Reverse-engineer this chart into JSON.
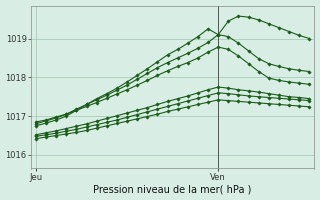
{
  "background_color": "#d8ede4",
  "grid_color": "#9ec8b0",
  "line_color": "#1a5c1a",
  "xlabel": "Pression niveau de la mer( hPa )",
  "xtick_labels": [
    "Jeu",
    "Ven"
  ],
  "xtick_positions": [
    0.0,
    0.72
  ],
  "ylim": [
    1015.65,
    1019.85
  ],
  "yticks": [
    1016,
    1017,
    1018,
    1019
  ],
  "xlim": [
    -0.02,
    1.1
  ],
  "vline_x": 0.72,
  "series": [
    {
      "x": [
        0.0,
        0.04,
        0.08,
        0.12,
        0.16,
        0.2,
        0.24,
        0.28,
        0.32,
        0.36,
        0.4,
        0.44,
        0.48,
        0.52,
        0.56,
        0.6,
        0.64,
        0.68,
        0.72,
        0.76,
        0.8,
        0.84,
        0.88,
        0.92,
        0.96,
        1.0,
        1.04,
        1.08
      ],
      "y": [
        1016.75,
        1016.82,
        1016.9,
        1017.0,
        1017.15,
        1017.3,
        1017.45,
        1017.58,
        1017.72,
        1017.88,
        1018.05,
        1018.22,
        1018.4,
        1018.58,
        1018.72,
        1018.88,
        1019.05,
        1019.25,
        1019.1,
        1019.45,
        1019.58,
        1019.55,
        1019.48,
        1019.38,
        1019.28,
        1019.18,
        1019.08,
        1019.0
      ]
    },
    {
      "x": [
        0.0,
        0.04,
        0.08,
        0.12,
        0.16,
        0.2,
        0.24,
        0.28,
        0.32,
        0.36,
        0.4,
        0.44,
        0.48,
        0.52,
        0.56,
        0.6,
        0.64,
        0.68,
        0.72,
        0.76,
        0.8,
        0.84,
        0.88,
        0.92,
        0.96,
        1.0,
        1.04,
        1.08
      ],
      "y": [
        1016.8,
        1016.88,
        1016.95,
        1017.05,
        1017.18,
        1017.3,
        1017.42,
        1017.54,
        1017.67,
        1017.8,
        1017.95,
        1018.1,
        1018.25,
        1018.38,
        1018.5,
        1018.62,
        1018.75,
        1018.9,
        1019.1,
        1019.05,
        1018.88,
        1018.68,
        1018.48,
        1018.35,
        1018.28,
        1018.22,
        1018.18,
        1018.15
      ]
    },
    {
      "x": [
        0.0,
        0.04,
        0.08,
        0.12,
        0.16,
        0.2,
        0.24,
        0.28,
        0.32,
        0.36,
        0.4,
        0.44,
        0.48,
        0.52,
        0.56,
        0.6,
        0.64,
        0.68,
        0.72,
        0.76,
        0.8,
        0.84,
        0.88,
        0.92,
        0.96,
        1.0,
        1.04,
        1.08
      ],
      "y": [
        1016.85,
        1016.9,
        1016.98,
        1017.05,
        1017.15,
        1017.25,
        1017.35,
        1017.46,
        1017.57,
        1017.68,
        1017.8,
        1017.92,
        1018.05,
        1018.17,
        1018.28,
        1018.38,
        1018.5,
        1018.65,
        1018.78,
        1018.72,
        1018.55,
        1018.35,
        1018.15,
        1017.98,
        1017.92,
        1017.88,
        1017.85,
        1017.82
      ]
    },
    {
      "x": [
        0.0,
        0.04,
        0.08,
        0.12,
        0.16,
        0.2,
        0.24,
        0.28,
        0.32,
        0.36,
        0.4,
        0.44,
        0.48,
        0.52,
        0.56,
        0.6,
        0.64,
        0.68,
        0.72,
        0.76,
        0.8,
        0.84,
        0.88,
        0.92,
        0.96,
        1.0,
        1.04,
        1.08
      ],
      "y": [
        1016.52,
        1016.57,
        1016.62,
        1016.68,
        1016.74,
        1016.8,
        1016.87,
        1016.94,
        1017.01,
        1017.08,
        1017.15,
        1017.22,
        1017.3,
        1017.38,
        1017.45,
        1017.52,
        1017.6,
        1017.68,
        1017.75,
        1017.72,
        1017.68,
        1017.65,
        1017.62,
        1017.58,
        1017.54,
        1017.5,
        1017.48,
        1017.45
      ]
    },
    {
      "x": [
        0.0,
        0.04,
        0.08,
        0.12,
        0.16,
        0.2,
        0.24,
        0.28,
        0.32,
        0.36,
        0.4,
        0.44,
        0.48,
        0.52,
        0.56,
        0.6,
        0.64,
        0.68,
        0.72,
        0.76,
        0.8,
        0.84,
        0.88,
        0.92,
        0.96,
        1.0,
        1.04,
        1.08
      ],
      "y": [
        1016.48,
        1016.52,
        1016.56,
        1016.61,
        1016.66,
        1016.72,
        1016.78,
        1016.84,
        1016.9,
        1016.97,
        1017.04,
        1017.11,
        1017.18,
        1017.25,
        1017.32,
        1017.39,
        1017.46,
        1017.53,
        1017.6,
        1017.58,
        1017.55,
        1017.52,
        1017.5,
        1017.48,
        1017.46,
        1017.44,
        1017.42,
        1017.4
      ]
    },
    {
      "x": [
        0.0,
        0.04,
        0.08,
        0.12,
        0.16,
        0.2,
        0.24,
        0.28,
        0.32,
        0.36,
        0.4,
        0.44,
        0.48,
        0.52,
        0.56,
        0.6,
        0.64,
        0.68,
        0.72,
        0.76,
        0.8,
        0.84,
        0.88,
        0.92,
        0.96,
        1.0,
        1.04,
        1.08
      ],
      "y": [
        1016.42,
        1016.46,
        1016.5,
        1016.54,
        1016.58,
        1016.63,
        1016.69,
        1016.75,
        1016.81,
        1016.87,
        1016.93,
        1016.99,
        1017.05,
        1017.12,
        1017.18,
        1017.24,
        1017.3,
        1017.36,
        1017.42,
        1017.4,
        1017.38,
        1017.36,
        1017.34,
        1017.32,
        1017.3,
        1017.28,
        1017.26,
        1017.24
      ]
    }
  ]
}
